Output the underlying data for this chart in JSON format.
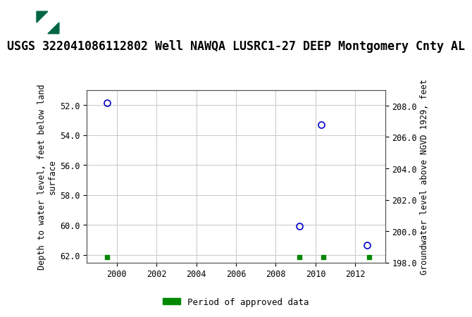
{
  "title": "USGS 322041086112802 Well NAWQA LUSRC1-27 DEEP Montgomery Cnty AL",
  "header_bg_color": "#006644",
  "header_text_color": "#ffffff",
  "background_color": "#ffffff",
  "plot_bg_color": "#ffffff",
  "grid_color": "#c8c8c8",
  "ylabel_left": "Depth to water level, feet below land\nsurface",
  "ylabel_right": "Groundwater level above NGVD 1929, feet",
  "xlim": [
    1998.5,
    2013.5
  ],
  "ylim_left_top": 51.0,
  "ylim_left_bottom": 62.5,
  "ylim_right_top": 209.0,
  "ylim_right_bottom": 198.0,
  "xticks": [
    2000,
    2002,
    2004,
    2006,
    2008,
    2010,
    2012
  ],
  "yticks_left": [
    52.0,
    54.0,
    56.0,
    58.0,
    60.0,
    62.0
  ],
  "yticks_right": [
    208.0,
    206.0,
    204.0,
    202.0,
    200.0,
    198.0
  ],
  "data_points": [
    {
      "year": 1999.5,
      "depth": 51.85
    },
    {
      "year": 2009.2,
      "depth": 60.05
    },
    {
      "year": 2010.3,
      "depth": 53.3
    },
    {
      "year": 2012.6,
      "depth": 61.35
    }
  ],
  "approved_data_markers": [
    {
      "year": 1999.5
    },
    {
      "year": 2009.2
    },
    {
      "year": 2010.4
    },
    {
      "year": 2012.7
    }
  ],
  "approved_depth": 62.15,
  "point_color": "#0000cc",
  "approved_color": "#008800",
  "legend_label": "Period of approved data",
  "title_fontsize": 12,
  "axis_label_fontsize": 8.5,
  "tick_fontsize": 8.5
}
